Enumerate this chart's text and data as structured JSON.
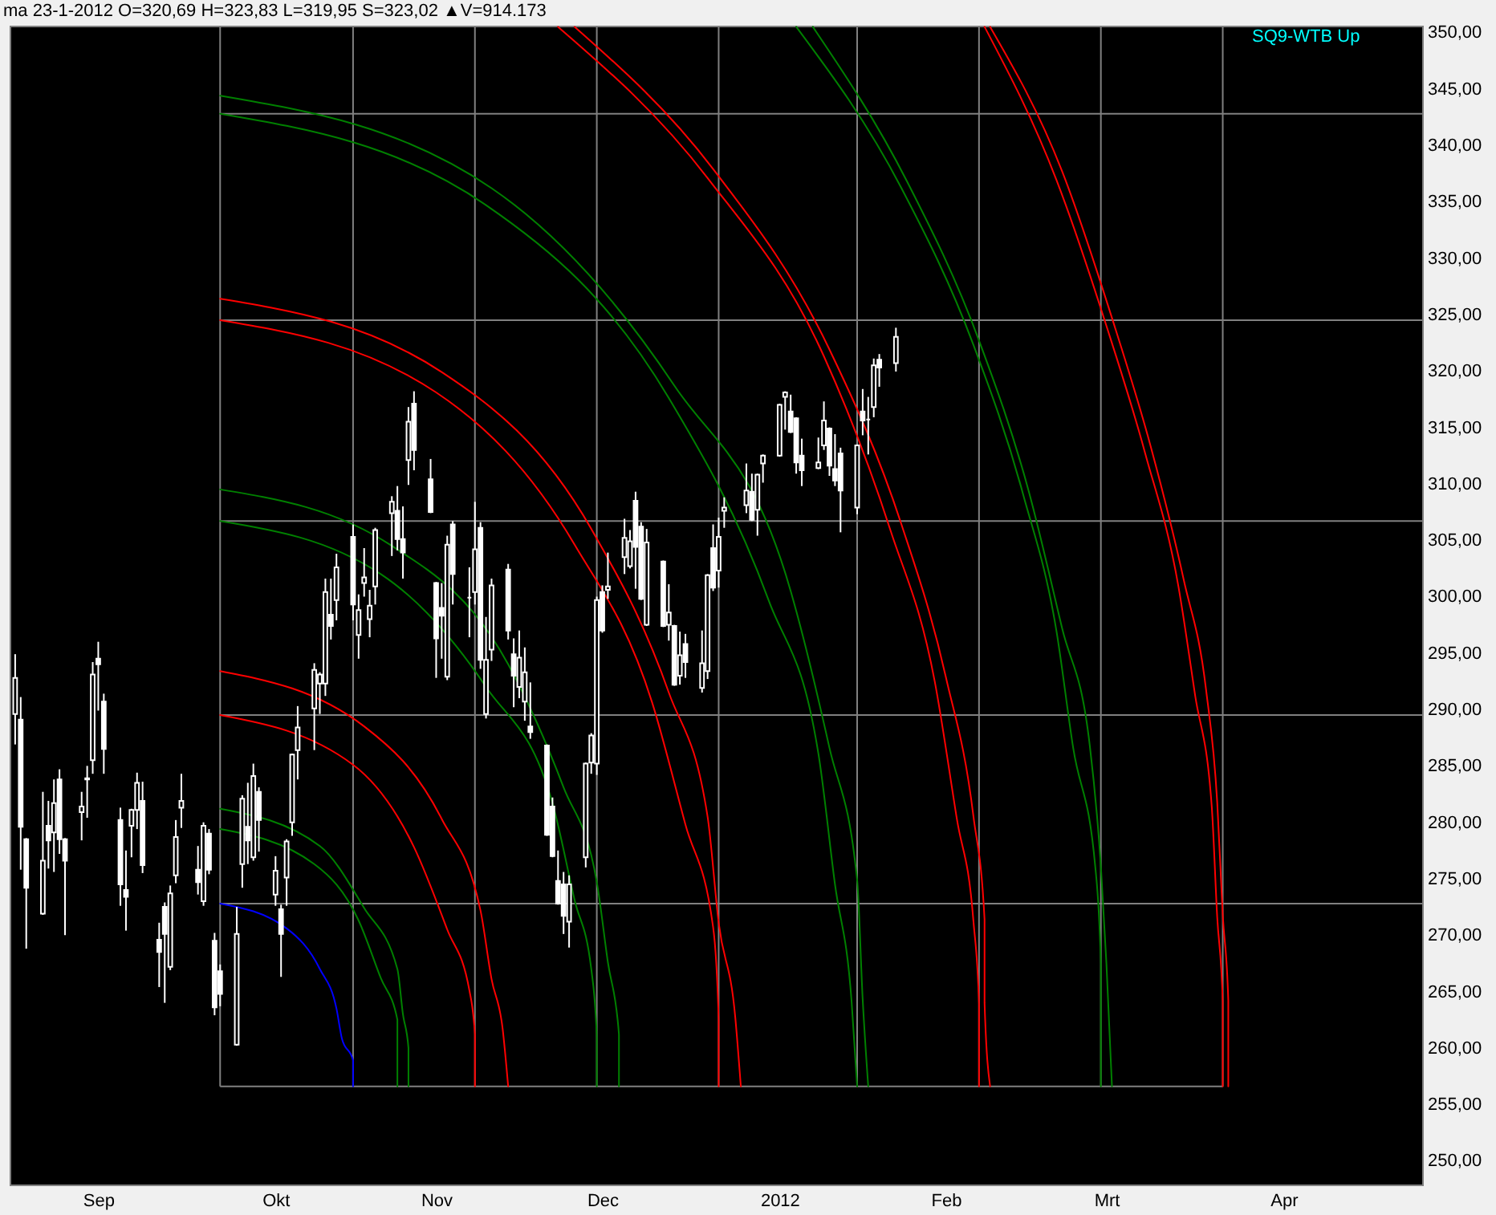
{
  "chart_data": {
    "type": "candlestick",
    "title": "ma 23-1-2012 O=320,69 H=323,83 L=319,95 S=323,02 ▲V=914.173",
    "annotations": [
      "SQ9-WTB Up"
    ],
    "color": "#ffffff",
    "x": [
      "2011-08-17",
      "2011-08-18",
      "2011-08-19",
      "2011-08-22",
      "2011-08-23",
      "2011-08-24",
      "2011-08-25",
      "2011-08-26",
      "2011-08-29",
      "2011-08-30",
      "2011-08-31",
      "2011-09-01",
      "2011-09-02",
      "2011-09-05",
      "2011-09-06",
      "2011-09-07",
      "2011-09-08",
      "2011-09-09",
      "2011-09-12",
      "2011-09-13",
      "2011-09-14",
      "2011-09-15",
      "2011-09-16",
      "2011-09-19",
      "2011-09-20",
      "2011-09-21",
      "2011-09-22",
      "2011-09-23",
      "2011-09-26",
      "2011-09-27",
      "2011-09-28",
      "2011-09-29",
      "2011-09-30",
      "2011-10-03",
      "2011-10-04",
      "2011-10-05",
      "2011-10-06",
      "2011-10-07",
      "2011-10-10",
      "2011-10-11",
      "2011-10-12",
      "2011-10-13",
      "2011-10-14",
      "2011-10-17",
      "2011-10-18",
      "2011-10-19",
      "2011-10-20",
      "2011-10-21",
      "2011-10-24",
      "2011-10-25",
      "2011-10-26",
      "2011-10-27",
      "2011-10-28",
      "2011-10-31",
      "2011-11-01",
      "2011-11-02",
      "2011-11-03",
      "2011-11-04",
      "2011-11-07",
      "2011-11-08",
      "2011-11-09",
      "2011-11-10",
      "2011-11-11",
      "2011-11-14",
      "2011-11-15",
      "2011-11-16",
      "2011-11-17",
      "2011-11-18",
      "2011-11-21",
      "2011-11-22",
      "2011-11-23",
      "2011-11-24",
      "2011-11-25",
      "2011-11-28",
      "2011-11-29",
      "2011-11-30",
      "2011-12-01",
      "2011-12-02",
      "2011-12-05",
      "2011-12-06",
      "2011-12-07",
      "2011-12-08",
      "2011-12-09",
      "2011-12-12",
      "2011-12-13",
      "2011-12-14",
      "2011-12-15",
      "2011-12-16",
      "2011-12-19",
      "2011-12-20",
      "2011-12-21",
      "2011-12-22",
      "2011-12-23",
      "2011-12-27",
      "2011-12-28",
      "2011-12-29",
      "2011-12-30",
      "2012-01-02",
      "2012-01-03",
      "2012-01-04",
      "2012-01-05",
      "2012-01-06",
      "2012-01-09",
      "2012-01-10",
      "2012-01-11",
      "2012-01-12",
      "2012-01-13",
      "2012-01-16",
      "2012-01-17",
      "2012-01-18",
      "2012-01-19",
      "2012-01-20",
      "2012-01-23"
    ],
    "ohlc": [
      [
        289.6,
        294.9,
        286.9,
        292.8
      ],
      [
        289.1,
        291.1,
        275.8,
        279.6
      ],
      [
        278.5,
        278.6,
        268.8,
        274.2
      ],
      [
        271.9,
        282.7,
        271.8,
        276.6
      ],
      [
        279.7,
        281.9,
        275.9,
        278.4
      ],
      [
        279.1,
        283.8,
        275.6,
        281.7
      ],
      [
        283.8,
        284.7,
        277.2,
        278.5
      ],
      [
        278.5,
        278.6,
        270.0,
        276.6
      ],
      [
        280.9,
        282.7,
        278.4,
        281.4
      ],
      [
        283.8,
        285.0,
        280.4,
        283.9
      ],
      [
        285.5,
        294.2,
        284.3,
        293.1
      ],
      [
        294.5,
        296.0,
        289.9,
        294.0
      ],
      [
        290.7,
        291.4,
        284.3,
        286.5
      ],
      [
        280.2,
        281.3,
        272.6,
        274.5
      ],
      [
        274.0,
        277.5,
        270.4,
        273.4
      ],
      [
        279.7,
        281.2,
        276.9,
        281.1
      ],
      [
        281.1,
        284.4,
        279.4,
        283.5
      ],
      [
        281.9,
        283.6,
        275.5,
        276.2
      ],
      [
        269.6,
        271.1,
        265.4,
        268.5
      ],
      [
        272.5,
        272.9,
        264.0,
        270.1
      ],
      [
        267.2,
        274.4,
        266.9,
        273.7
      ],
      [
        275.3,
        280.2,
        274.6,
        278.7
      ],
      [
        281.3,
        284.3,
        279.5,
        281.9
      ],
      [
        275.8,
        277.9,
        273.6,
        274.7
      ],
      [
        273.0,
        280.0,
        272.6,
        279.7
      ],
      [
        279.0,
        279.4,
        275.4,
        275.8
      ],
      [
        269.5,
        270.2,
        262.9,
        263.6
      ],
      [
        266.8,
        267.4,
        263.7,
        264.8
      ],
      [
        260.3,
        272.5,
        260.2,
        270.1
      ],
      [
        276.3,
        282.4,
        274.2,
        282.1
      ],
      [
        279.6,
        283.5,
        276.3,
        278.4
      ],
      [
        276.9,
        285.2,
        276.6,
        284.1
      ],
      [
        282.7,
        283.1,
        277.4,
        280.2
      ],
      [
        273.6,
        277.0,
        272.6,
        275.7
      ],
      [
        272.3,
        272.7,
        266.3,
        270.1
      ],
      [
        275.1,
        278.5,
        272.6,
        278.3
      ],
      [
        280.0,
        286.1,
        278.8,
        286.0
      ],
      [
        286.4,
        290.3,
        283.8,
        288.4
      ],
      [
        290.1,
        294.1,
        286.4,
        293.5
      ],
      [
        292.3,
        293.3,
        289.6,
        293.1
      ],
      [
        292.3,
        301.6,
        291.2,
        300.4
      ],
      [
        298.4,
        301.6,
        296.2,
        297.4
      ],
      [
        299.7,
        303.8,
        297.9,
        302.6
      ],
      [
        305.3,
        306.4,
        297.9,
        299.3
      ],
      [
        296.6,
        300.2,
        294.5,
        298.8
      ],
      [
        301.2,
        304.3,
        300.0,
        301.7
      ],
      [
        298.0,
        300.6,
        296.4,
        299.2
      ],
      [
        300.9,
        306.1,
        299.3,
        305.9
      ],
      [
        307.4,
        308.9,
        303.6,
        308.4
      ],
      [
        307.6,
        309.8,
        304.1,
        305.1
      ],
      [
        305.1,
        308.0,
        301.6,
        303.9
      ],
      [
        312.1,
        316.8,
        309.9,
        315.5
      ],
      [
        317.1,
        318.2,
        311.2,
        313.0
      ],
      [
        310.4,
        312.2,
        307.4,
        307.5
      ],
      [
        301.2,
        301.3,
        292.8,
        296.3
      ],
      [
        299.0,
        301.2,
        294.5,
        298.3
      ],
      [
        292.9,
        305.4,
        292.6,
        304.6
      ],
      [
        306.4,
        306.7,
        299.3,
        302.0
      ],
      [
        299.9,
        302.6,
        296.4,
        299.9
      ],
      [
        300.4,
        308.4,
        299.3,
        304.2
      ],
      [
        306.1,
        306.6,
        293.6,
        294.4
      ],
      [
        289.6,
        298.2,
        289.2,
        294.4
      ],
      [
        295.3,
        301.6,
        294.3,
        301.0
      ],
      [
        302.4,
        302.9,
        296.2,
        297.0
      ],
      [
        294.9,
        296.3,
        290.2,
        293.0
      ],
      [
        292.0,
        297.0,
        291.0,
        294.6
      ],
      [
        290.7,
        295.5,
        289.0,
        293.3
      ],
      [
        288.5,
        292.4,
        287.4,
        288.0
      ],
      [
        286.8,
        286.9,
        278.8,
        278.9
      ],
      [
        281.4,
        282.2,
        276.9,
        277.0
      ],
      [
        274.8,
        277.5,
        272.7,
        272.8
      ],
      [
        274.5,
        275.6,
        270.1,
        271.7
      ],
      [
        271.2,
        275.3,
        268.9,
        274.5
      ],
      [
        276.9,
        285.3,
        276.0,
        285.2
      ],
      [
        285.3,
        287.9,
        284.3,
        287.7
      ],
      [
        285.2,
        300.0,
        284.2,
        299.7
      ],
      [
        300.4,
        301.0,
        296.8,
        297.0
      ],
      [
        300.6,
        303.9,
        299.8,
        300.9
      ],
      [
        303.5,
        306.9,
        302.0,
        305.2
      ],
      [
        302.7,
        305.9,
        302.5,
        304.9
      ],
      [
        308.5,
        309.3,
        300.7,
        304.4
      ],
      [
        306.2,
        306.6,
        299.7,
        299.8
      ],
      [
        297.5,
        306.0,
        297.4,
        304.8
      ],
      [
        303.1,
        303.2,
        297.3,
        297.4
      ],
      [
        297.5,
        301.1,
        296.1,
        298.6
      ],
      [
        297.4,
        297.5,
        292.1,
        292.2
      ],
      [
        293.0,
        296.9,
        292.2,
        294.8
      ],
      [
        295.8,
        296.7,
        292.8,
        294.2
      ],
      [
        291.9,
        297.0,
        291.5,
        294.1
      ],
      [
        293.4,
        302.0,
        292.7,
        301.9
      ],
      [
        304.3,
        306.4,
        300.5,
        300.8
      ],
      [
        302.3,
        307.0,
        300.8,
        305.3
      ],
      [
        307.6,
        308.8,
        306.1,
        307.9
      ],
      [
        308.1,
        311.8,
        307.4,
        309.4
      ],
      [
        309.3,
        310.9,
        306.7,
        306.8
      ],
      [
        307.7,
        310.9,
        305.4,
        310.8
      ],
      [
        311.8,
        312.6,
        310.1,
        312.5
      ],
      [
        312.5,
        317.1,
        312.4,
        317.0
      ],
      [
        317.7,
        318.2,
        314.8,
        318.1
      ],
      [
        316.4,
        317.9,
        314.5,
        314.6
      ],
      [
        315.8,
        315.9,
        310.9,
        311.9
      ],
      [
        312.5,
        314.0,
        309.8,
        311.2
      ],
      [
        311.4,
        314.1,
        311.3,
        311.9
      ],
      [
        313.4,
        317.3,
        313.0,
        315.6
      ],
      [
        314.9,
        315.0,
        310.7,
        311.6
      ],
      [
        311.3,
        314.4,
        309.8,
        310.3
      ],
      [
        312.7,
        313.2,
        305.7,
        309.4
      ],
      [
        307.9,
        313.5,
        307.3,
        313.4
      ],
      [
        316.4,
        318.4,
        314.3,
        315.6
      ],
      [
        315.7,
        317.7,
        312.6,
        315.7
      ],
      [
        316.8,
        321.1,
        315.9,
        320.5
      ],
      [
        321.0,
        321.5,
        318.6,
        320.3
      ],
      [
        320.69,
        323.83,
        319.95,
        323.02
      ]
    ],
    "series": [
      {
        "type": "line",
        "color": "#0000ff",
        "x": [
          "2011-09-23",
          "2011-10-05",
          "2011-10-11",
          "2011-10-14",
          "2011-10-15",
          "2011-10-17",
          "2011-10-17"
        ],
        "values": [
          272.8,
          270.6,
          267.0,
          263.5,
          260.8,
          258.9,
          256.6
        ]
      },
      {
        "type": "line",
        "color": "#008000",
        "x": [
          "2011-09-23",
          "2011-10-10",
          "2011-10-18",
          "2011-10-22",
          "2011-10-25",
          "2011-10-25"
        ],
        "values": [
          279.4,
          276.3,
          271.3,
          266.2,
          262.5,
          256.6
        ]
      },
      {
        "type": "line",
        "color": "#008000",
        "x": [
          "2011-09-23",
          "2011-10-11",
          "2011-10-19",
          "2011-10-25",
          "2011-10-26",
          "2011-10-27",
          "2011-10-27"
        ],
        "values": [
          281.2,
          277.9,
          272.4,
          267.0,
          263.0,
          260.0,
          256.6
        ]
      },
      {
        "type": "line",
        "color": "#ff0000",
        "x": [
          "2011-09-23",
          "2011-10-17",
          "2011-10-28",
          "2011-11-03",
          "2011-11-07",
          "2011-11-08",
          "2011-11-08"
        ],
        "values": [
          289.5,
          285.1,
          277.8,
          270.5,
          265.1,
          261.2,
          256.6
        ]
      },
      {
        "type": "line",
        "color": "#ff0000",
        "x": [
          "2011-09-23",
          "2011-10-19",
          "2011-11-02",
          "2011-11-09",
          "2011-11-11",
          "2011-11-13",
          "2011-11-14"
        ],
        "values": [
          293.4,
          288.5,
          280.3,
          272.2,
          266.1,
          261.7,
          256.6
        ]
      },
      {
        "type": "line",
        "color": "#008000",
        "x": [
          "2011-09-23",
          "2011-10-22",
          "2011-11-10",
          "2011-11-22",
          "2011-11-26",
          "2011-11-29",
          "2011-11-30",
          "2011-11-30"
        ],
        "values": [
          306.7,
          302.0,
          292.0,
          281.7,
          273.1,
          267.0,
          261.0,
          256.6
        ]
      },
      {
        "type": "line",
        "color": "#008000",
        "x": [
          "2011-09-23",
          "2011-10-24",
          "2011-11-14",
          "2011-11-24",
          "2011-11-30",
          "2011-12-02",
          "2011-12-04",
          "2011-12-04"
        ],
        "values": [
          309.5,
          304.5,
          294.0,
          283.1,
          274.7,
          267.6,
          261.2,
          256.6
        ]
      },
      {
        "type": "line",
        "color": "#ff0000",
        "x": [
          "2011-09-23",
          "2011-11-01",
          "2011-11-26",
          "2011-12-10",
          "2011-12-16",
          "2011-12-21",
          "2011-12-22",
          "2011-12-22"
        ],
        "values": [
          324.5,
          318.1,
          304.6,
          290.6,
          279.8,
          270.7,
          262.5,
          256.6
        ]
      },
      {
        "type": "line",
        "color": "#ff0000",
        "x": [
          "2011-09-23",
          "2011-11-02",
          "2011-11-29",
          "2011-12-13",
          "2011-12-20",
          "2011-12-22",
          "2011-12-25",
          "2011-12-26"
        ],
        "values": [
          326.4,
          319.9,
          306.0,
          291.5,
          280.5,
          271.1,
          262.7,
          256.6
        ]
      },
      {
        "type": "line",
        "color": "#008000",
        "x": [
          "2011-09-23",
          "2011-11-10",
          "2011-12-13",
          "2011-12-31",
          "2012-01-09",
          "2012-01-12",
          "2012-01-15",
          "2012-01-16"
        ],
        "values": [
          342.8,
          334.7,
          317.6,
          299.7,
          286.1,
          274.5,
          264.1,
          256.6
        ]
      },
      {
        "type": "line",
        "color": "#008000",
        "x": [
          "2011-09-23",
          "2011-11-11",
          "2011-12-14",
          "2012-01-04",
          "2012-01-11",
          "2012-01-16",
          "2012-01-17",
          "2012-01-18"
        ],
        "values": [
          344.4,
          336.2,
          318.7,
          300.5,
          286.6,
          274.9,
          264.3,
          256.6
        ]
      },
      {
        "type": "line",
        "color": "#ff0000",
        "x": [
          "2011-11-23",
          "2011-12-20",
          "2012-01-10",
          "2012-01-22",
          "2012-01-30",
          "2012-02-03",
          "2012-02-06",
          "2012-02-07",
          "2012-02-07"
        ],
        "values": [
          350.5,
          337.1,
          321.3,
          305.9,
          292.5,
          280.3,
          271.2,
          263.9,
          256.6
        ]
      },
      {
        "type": "line",
        "color": "#ff0000",
        "x": [
          "2011-11-26",
          "2011-12-21",
          "2012-01-11",
          "2012-01-24",
          "2012-02-01",
          "2012-02-06",
          "2012-02-08",
          "2012-02-08",
          "2012-02-09"
        ],
        "values": [
          350.5,
          337.9,
          321.9,
          306.4,
          292.9,
          280.5,
          271.4,
          264.0,
          256.6
        ]
      },
      {
        "type": "line",
        "color": "#008000",
        "x": [
          "2012-01-05",
          "2012-01-24",
          "2012-02-06",
          "2012-02-15",
          "2012-02-21",
          "2012-02-24",
          "2012-02-28",
          "2012-02-29",
          "2012-02-29"
        ],
        "values": [
          350.5,
          336.2,
          322.3,
          309.0,
          296.9,
          286.6,
          276.0,
          267.4,
          256.6
        ]
      },
      {
        "type": "line",
        "color": "#008000",
        "x": [
          "2012-01-08",
          "2012-01-25",
          "2012-02-07",
          "2012-02-16",
          "2012-02-22",
          "2012-02-27",
          "2012-02-29",
          "2012-03-01",
          "2012-03-02"
        ],
        "values": [
          350.5,
          336.8,
          322.7,
          309.3,
          297.2,
          286.8,
          276.1,
          267.5,
          256.6
        ]
      },
      {
        "type": "line",
        "color": "#ff0000",
        "x": [
          "2012-02-08",
          "2012-02-21",
          "2012-03-01",
          "2012-03-08",
          "2012-03-14",
          "2012-03-17",
          "2012-03-20",
          "2012-03-21",
          "2012-03-22",
          "2012-03-22"
        ],
        "values": [
          350.5,
          336.9,
          324.0,
          312.7,
          300.9,
          291.3,
          281.5,
          271.6,
          264.1,
          256.6
        ]
      },
      {
        "type": "line",
        "color": "#ff0000",
        "x": [
          "2012-02-09",
          "2012-02-22",
          "2012-03-02",
          "2012-03-09",
          "2012-03-15",
          "2012-03-19",
          "2012-03-21",
          "2012-03-22",
          "2012-03-23",
          "2012-03-23"
        ],
        "values": [
          350.5,
          337.7,
          324.7,
          313.3,
          301.4,
          291.7,
          281.8,
          271.8,
          264.2,
          256.6
        ]
      }
    ],
    "xlim": [
      "2011-08-16",
      "2012-04-27"
    ],
    "xticks": [
      {
        "value": "2011-09-01",
        "label": "Sep"
      },
      {
        "value": "2011-10-03",
        "label": "Okt"
      },
      {
        "value": "2011-11-01",
        "label": "Nov"
      },
      {
        "value": "2011-12-01",
        "label": "Dec"
      },
      {
        "value": "2012-01-02",
        "label": "2012"
      },
      {
        "value": "2012-02-01",
        "label": "Feb"
      },
      {
        "value": "2012-03-01",
        "label": "Mrt"
      },
      {
        "value": "2012-04-02",
        "label": "Apr"
      }
    ],
    "ylim": [
      247.9,
      350.6
    ],
    "yticks": [
      {
        "value": 250,
        "label": "250,00"
      },
      {
        "value": 255,
        "label": "255,00"
      },
      {
        "value": 260,
        "label": "260,00"
      },
      {
        "value": 265,
        "label": "265,00"
      },
      {
        "value": 270,
        "label": "270,00"
      },
      {
        "value": 275,
        "label": "275,00"
      },
      {
        "value": 280,
        "label": "280,00"
      },
      {
        "value": 285,
        "label": "285,00"
      },
      {
        "value": 290,
        "label": "290,00"
      },
      {
        "value": 295,
        "label": "295,00"
      },
      {
        "value": 300,
        "label": "300,00"
      },
      {
        "value": 305,
        "label": "305,00"
      },
      {
        "value": 310,
        "label": "310,00"
      },
      {
        "value": 315,
        "label": "315,00"
      },
      {
        "value": 320,
        "label": "320,00"
      },
      {
        "value": 325,
        "label": "325,00"
      },
      {
        "value": 330,
        "label": "330,00"
      },
      {
        "value": 335,
        "label": "335,00"
      },
      {
        "value": 340,
        "label": "340,00"
      },
      {
        "value": 345,
        "label": "345,00"
      },
      {
        "value": 350,
        "label": "350,00"
      }
    ],
    "ref_lines": [
      {
        "axis": "x",
        "value": "2011-09-23",
        "color": "#808080"
      },
      {
        "axis": "x",
        "value": "2011-10-17",
        "color": "#808080"
      },
      {
        "axis": "x",
        "value": "2011-11-08",
        "color": "#808080"
      },
      {
        "axis": "x",
        "value": "2011-11-30",
        "color": "#808080"
      },
      {
        "axis": "x",
        "value": "2011-12-22",
        "color": "#808080"
      },
      {
        "axis": "x",
        "value": "2012-01-16",
        "color": "#808080"
      },
      {
        "axis": "x",
        "value": "2012-02-07",
        "color": "#808080"
      },
      {
        "axis": "x",
        "value": "2012-02-29",
        "color": "#808080"
      },
      {
        "axis": "x",
        "value": "2012-03-22",
        "color": "#808080"
      },
      {
        "axis": "y",
        "value": 256.6,
        "color": "#808080"
      },
      {
        "axis": "y",
        "value": 272.8,
        "color": "#808080"
      },
      {
        "axis": "y",
        "value": 289.5,
        "color": "#808080"
      },
      {
        "axis": "y",
        "value": 306.7,
        "color": "#808080"
      },
      {
        "axis": "y",
        "value": 324.5,
        "color": "#808080"
      },
      {
        "axis": "y",
        "value": 342.8,
        "color": "#808080"
      }
    ]
  }
}
